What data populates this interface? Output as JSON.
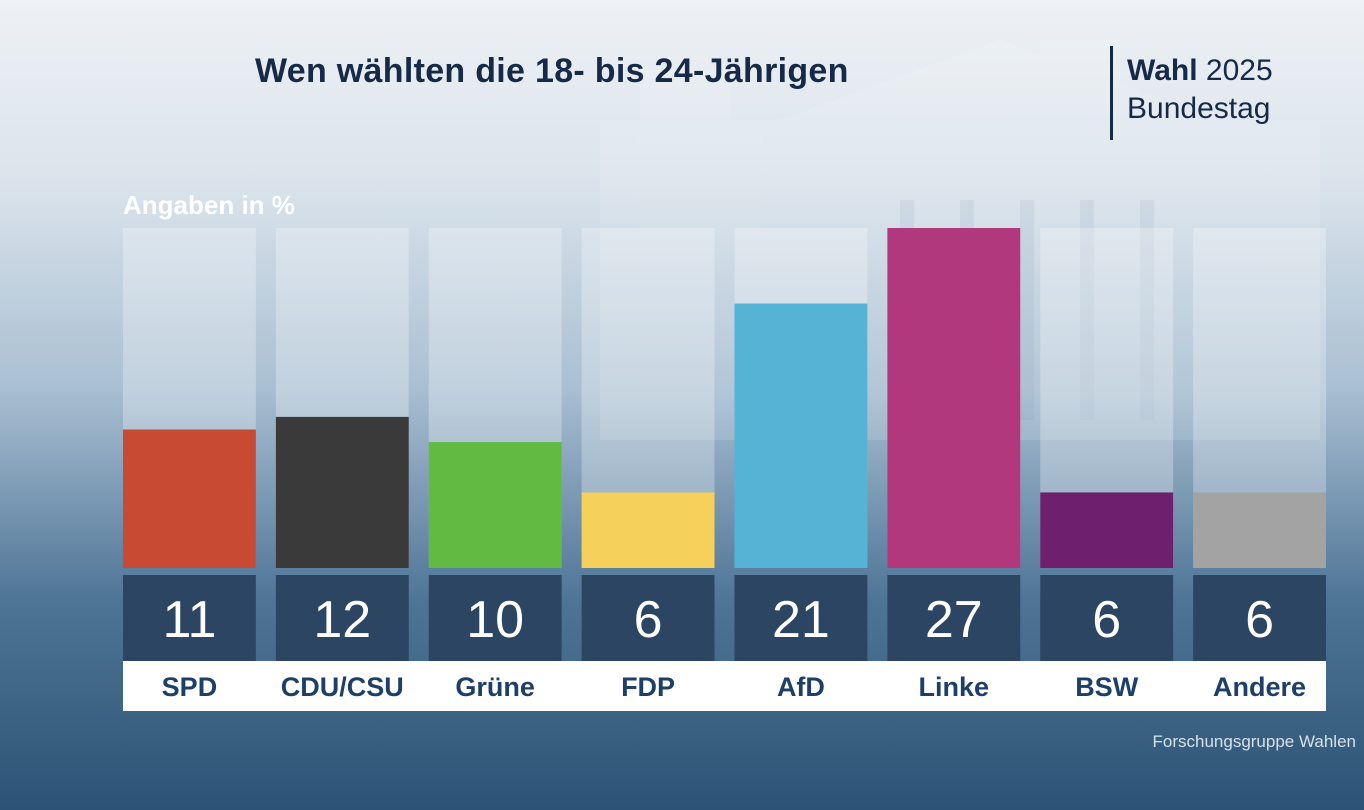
{
  "header": {
    "title": "Wen wählten die 18- bis 24-Jährigen",
    "brand_bold": "Wahl",
    "brand_year": "2025",
    "brand_subtitle": "Bundestag"
  },
  "unit_label": "Angaben in %",
  "source": "Forschungsgruppe Wahlen",
  "chart_data": {
    "type": "bar",
    "title": "Wen wählten die 18- bis 24-Jährigen",
    "ylabel": "Angaben in %",
    "xlabel": "",
    "ylim": [
      0,
      27
    ],
    "categories": [
      "SPD",
      "CDU/CSU",
      "Grüne",
      "FDP",
      "AfD",
      "Linke",
      "BSW",
      "Andere"
    ],
    "values": [
      11,
      12,
      10,
      6,
      21,
      27,
      6,
      6
    ],
    "colors": [
      "#c94a33",
      "#3a3a3a",
      "#63ba42",
      "#f5d05a",
      "#55b4d6",
      "#b1387d",
      "#6e206e",
      "#a3a3a3"
    ],
    "grid": false,
    "legend": "none"
  }
}
